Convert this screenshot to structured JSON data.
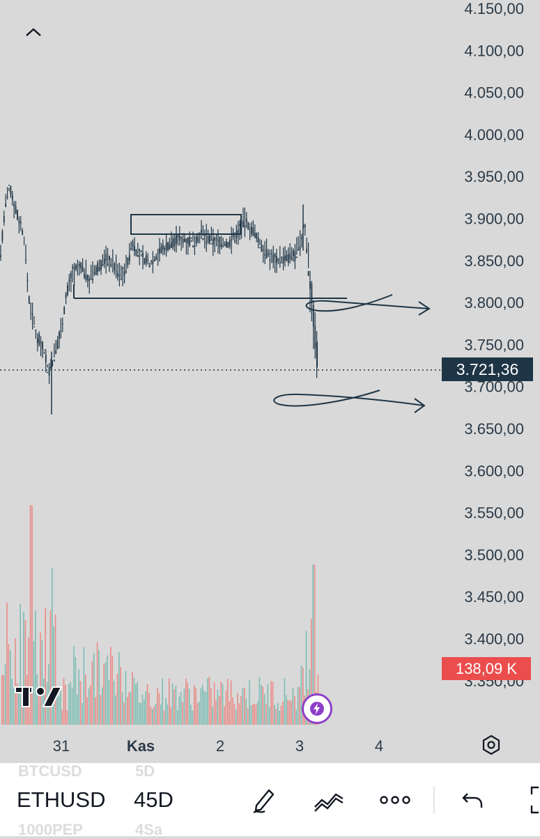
{
  "chart": {
    "price_axis": [
      "4.150,00",
      "4.100,00",
      "4.050,00",
      "4.000,00",
      "3.950,00",
      "3.900,00",
      "3.850,00",
      "3.800,00",
      "3.750,00",
      "3.700,00",
      "3.650,00",
      "3.600,00",
      "3.550,00",
      "3.500,00",
      "3.450,00",
      "3.400,00",
      "3.350,00"
    ],
    "time_axis": [
      "31",
      "Kas",
      "2",
      "3",
      "4"
    ],
    "current_price": "3.721,36",
    "volume_value": "138,09 K",
    "colors": {
      "background": "#d9d9d9",
      "candle": "#1e3546",
      "volume_up": "#7cbcb3",
      "volume_down": "#e88a86",
      "price_badge": "#1e3546",
      "volume_badge": "#eb4d4d",
      "flash_ring": "#8e3fc9"
    }
  },
  "chart_data": {
    "type": "line",
    "x": [
      "30",
      "30.5",
      "31",
      "31.5",
      "Kas",
      "1.5",
      "2",
      "2.5",
      "3",
      "3.1",
      "3.2"
    ],
    "series": [
      {
        "values": [
          3910,
          3930,
          3720,
          3860,
          3880,
          3860,
          3880,
          3880,
          3890,
          3800,
          3721
        ]
      }
    ],
    "ylim": [
      3330,
      4160
    ]
  },
  "toolbar": {
    "symbol": "ETHUSD",
    "interval": "45D",
    "ghost_prev_symbol": "BTCUSD",
    "ghost_prev_interval": "5D",
    "ghost_next_symbol": "1000PEP",
    "ghost_next_interval": "4Sa"
  },
  "icons": {
    "collapse": "chevron-up-icon",
    "settings": "hexagon-settings-icon",
    "flash": "lightning-icon",
    "draw": "pen-icon",
    "indicators": "trend-lines-icon",
    "more": "more-dots-icon",
    "undo": "undo-icon",
    "fullscreen": "fullscreen-icon",
    "logo": "tradingview-logo"
  }
}
